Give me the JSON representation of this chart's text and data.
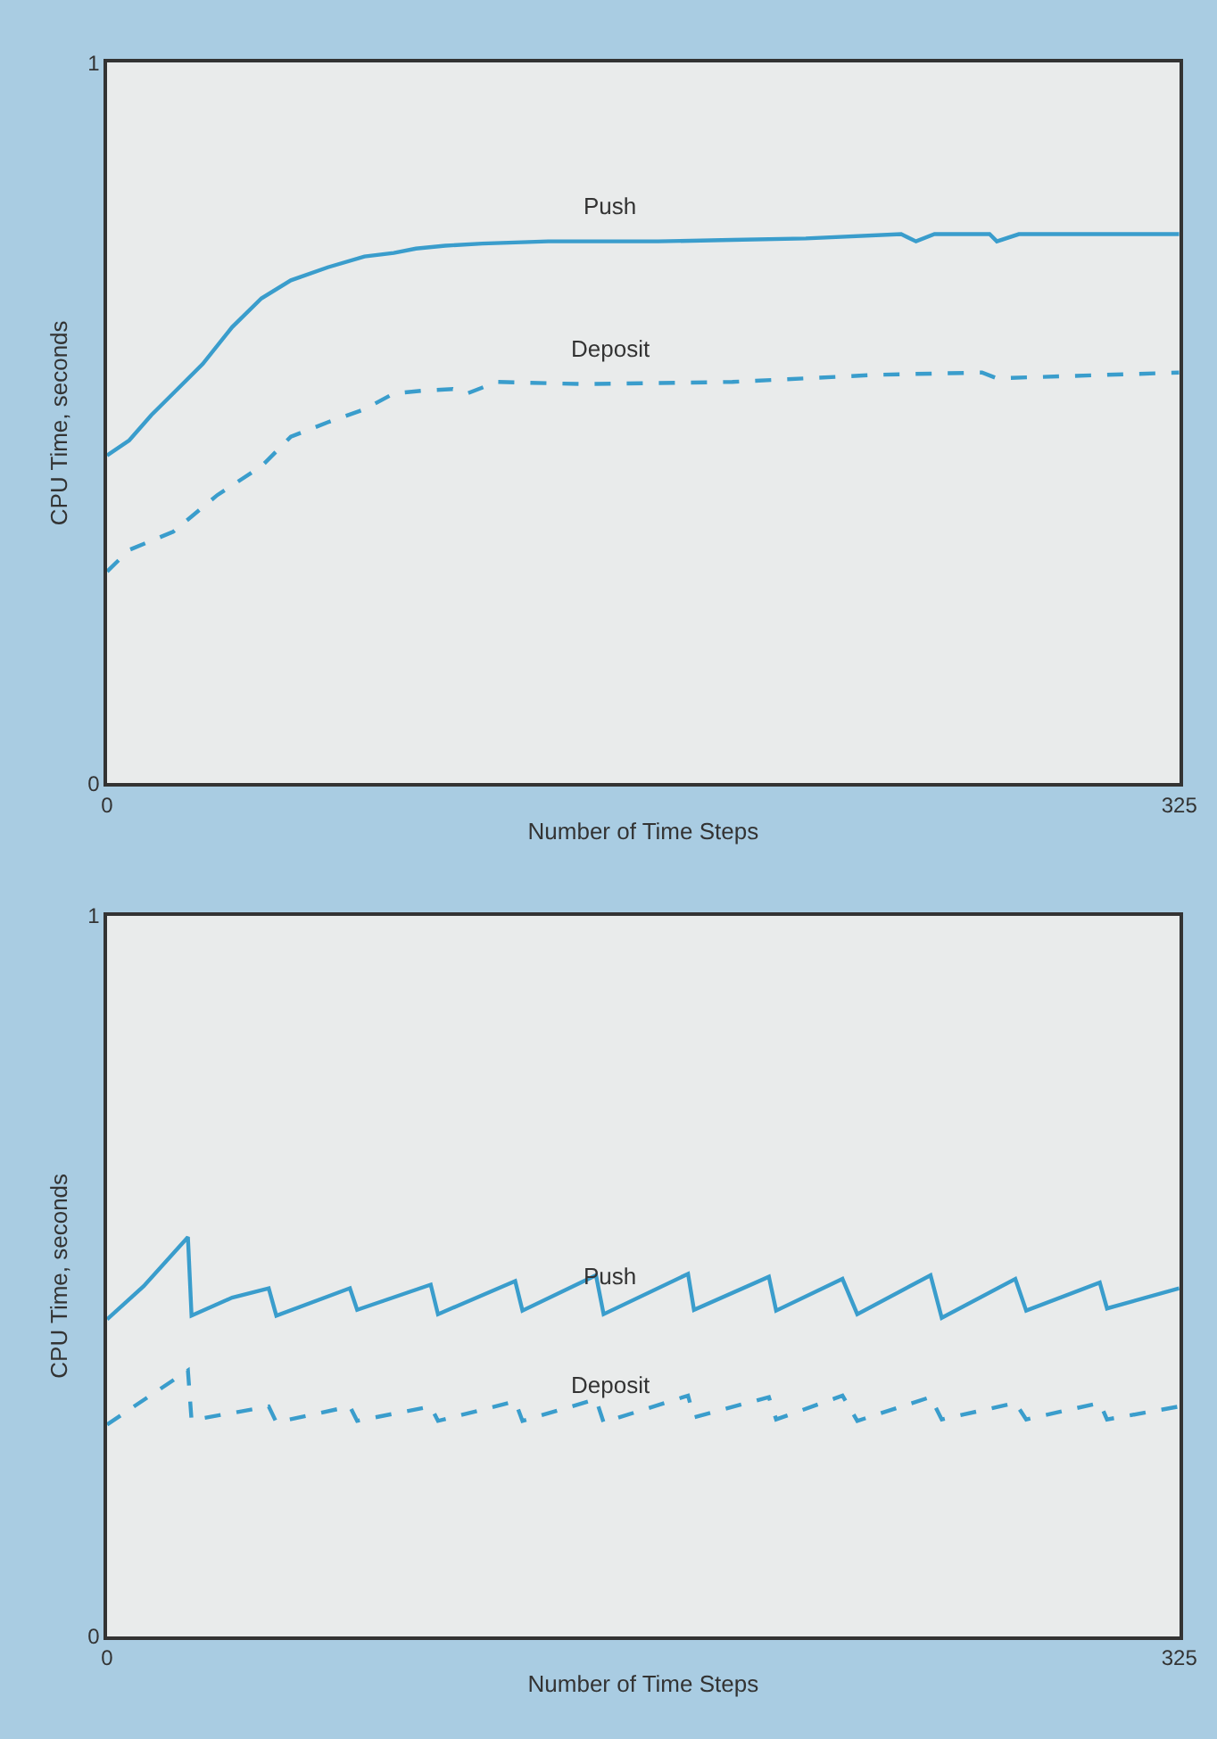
{
  "chart_data": [
    {
      "type": "line",
      "xlabel": "Number of Time Steps",
      "ylabel": "CPU Time, seconds",
      "xlim": [
        0,
        325
      ],
      "ylim": [
        0,
        1
      ],
      "xticks": [
        0,
        325
      ],
      "yticks": [
        0,
        1
      ],
      "series": [
        {
          "name": "Push",
          "color": "#3a9dcc",
          "line_style": "solid",
          "x": [
            0,
            6.7,
            13.4,
            20,
            29,
            37.9,
            46.8,
            55.7,
            66.9,
            78,
            86.9,
            93.6,
            102.5,
            113.7,
            133.7,
            167,
            189.5,
            211.8,
            240.7,
            245.2,
            250.8,
            267.5,
            269.7,
            276.4,
            325
          ],
          "values": [
            0.455,
            0.476,
            0.511,
            0.541,
            0.582,
            0.633,
            0.673,
            0.698,
            0.716,
            0.731,
            0.736,
            0.742,
            0.746,
            0.749,
            0.752,
            0.752,
            0.754,
            0.756,
            0.762,
            0.752,
            0.762,
            0.762,
            0.752,
            0.762,
            0.762
          ]
        },
        {
          "name": "Deposit",
          "color": "#3a9dcc",
          "line_style": "dashed",
          "x": [
            0,
            6.7,
            20,
            33.4,
            46.8,
            55.7,
            66.9,
            78,
            86.9,
            95.8,
            104.8,
            109.2,
            118.1,
            144.9,
            189.5,
            234,
            265.2,
            269.7,
            325
          ],
          "values": [
            0.294,
            0.324,
            0.349,
            0.4,
            0.44,
            0.481,
            0.501,
            0.519,
            0.541,
            0.545,
            0.547,
            0.541,
            0.557,
            0.554,
            0.557,
            0.567,
            0.57,
            0.562,
            0.57
          ]
        }
      ]
    },
    {
      "type": "line",
      "xlabel": "Number of Time Steps",
      "ylabel": "CPU Time, seconds",
      "xlim": [
        0,
        325
      ],
      "ylim": [
        0,
        1
      ],
      "xticks": [
        0,
        325
      ],
      "yticks": [
        0,
        1
      ],
      "series": [
        {
          "name": "Push",
          "color": "#3a9dcc",
          "line_style": "solid",
          "x": [
            0,
            11.1,
            24.5,
            25.6,
            37.9,
            49,
            51.3,
            73.6,
            75.8,
            98.1,
            100.3,
            123.7,
            125.9,
            148.2,
            150.5,
            176.1,
            177.9,
            200.6,
            202.8,
            222.9,
            227.4,
            249.6,
            253,
            275.3,
            278.6,
            300.9,
            303.1,
            325
          ],
          "values": [
            0.44,
            0.486,
            0.554,
            0.445,
            0.47,
            0.483,
            0.445,
            0.483,
            0.453,
            0.488,
            0.447,
            0.493,
            0.452,
            0.501,
            0.447,
            0.503,
            0.453,
            0.499,
            0.452,
            0.496,
            0.447,
            0.501,
            0.442,
            0.496,
            0.452,
            0.491,
            0.455,
            0.483
          ]
        },
        {
          "name": "Deposit",
          "color": "#3a9dcc",
          "line_style": "dashed",
          "x": [
            0,
            24.5,
            25.6,
            49,
            51.3,
            73.6,
            75.8,
            98.1,
            100.3,
            123.7,
            125.9,
            148.2,
            150.5,
            176.1,
            177.9,
            200.6,
            202.8,
            222.9,
            227.4,
            249.6,
            253,
            275.3,
            278.6,
            300.9,
            303.1,
            325
          ],
          "values": [
            0.294,
            0.369,
            0.3,
            0.319,
            0.297,
            0.319,
            0.299,
            0.319,
            0.299,
            0.326,
            0.299,
            0.329,
            0.297,
            0.334,
            0.304,
            0.332,
            0.301,
            0.334,
            0.299,
            0.332,
            0.301,
            0.324,
            0.301,
            0.324,
            0.301,
            0.319
          ]
        }
      ]
    }
  ]
}
